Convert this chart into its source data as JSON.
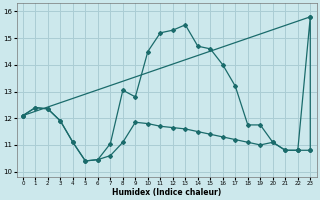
{
  "xlabel": "Humidex (Indice chaleur)",
  "bg_color": "#cce8ec",
  "line_color": "#1a6b6b",
  "grid_color": "#aacdd4",
  "xlim": [
    -0.5,
    23.5
  ],
  "ylim": [
    9.8,
    16.3
  ],
  "xticks": [
    0,
    1,
    2,
    3,
    4,
    5,
    6,
    7,
    8,
    9,
    10,
    11,
    12,
    13,
    14,
    15,
    16,
    17,
    18,
    19,
    20,
    21,
    22,
    23
  ],
  "yticks": [
    10,
    11,
    12,
    13,
    14,
    15,
    16
  ],
  "line_peaked": {
    "x": [
      0,
      1,
      2,
      3,
      4,
      5,
      6,
      7,
      8,
      9,
      10,
      11,
      12,
      13,
      14,
      15,
      16,
      17,
      18,
      19,
      20,
      21,
      22
    ],
    "y": [
      12.1,
      12.4,
      12.35,
      11.9,
      11.1,
      10.4,
      10.45,
      11.05,
      13.05,
      12.8,
      14.5,
      15.2,
      15.3,
      15.5,
      14.7,
      14.6,
      14.0,
      13.2,
      11.75,
      11.75,
      11.1,
      10.8,
      10.8
    ]
  },
  "line_flat": {
    "x": [
      0,
      1,
      2,
      3,
      4,
      5,
      6,
      7,
      8,
      9,
      10,
      11,
      12,
      13,
      14,
      15,
      16,
      17,
      18,
      19,
      20,
      21,
      22,
      23
    ],
    "y": [
      12.1,
      12.4,
      12.35,
      11.9,
      11.1,
      10.4,
      10.45,
      10.6,
      11.1,
      11.85,
      11.8,
      11.7,
      11.65,
      11.6,
      11.5,
      11.4,
      11.3,
      11.2,
      11.1,
      11.0,
      11.1,
      10.8,
      10.8,
      10.8
    ]
  },
  "line_diag": {
    "x": [
      0,
      23
    ],
    "y": [
      12.1,
      15.8
    ]
  },
  "line_spike": {
    "x": [
      22,
      23,
      23
    ],
    "y": [
      10.8,
      15.8,
      10.8
    ]
  }
}
